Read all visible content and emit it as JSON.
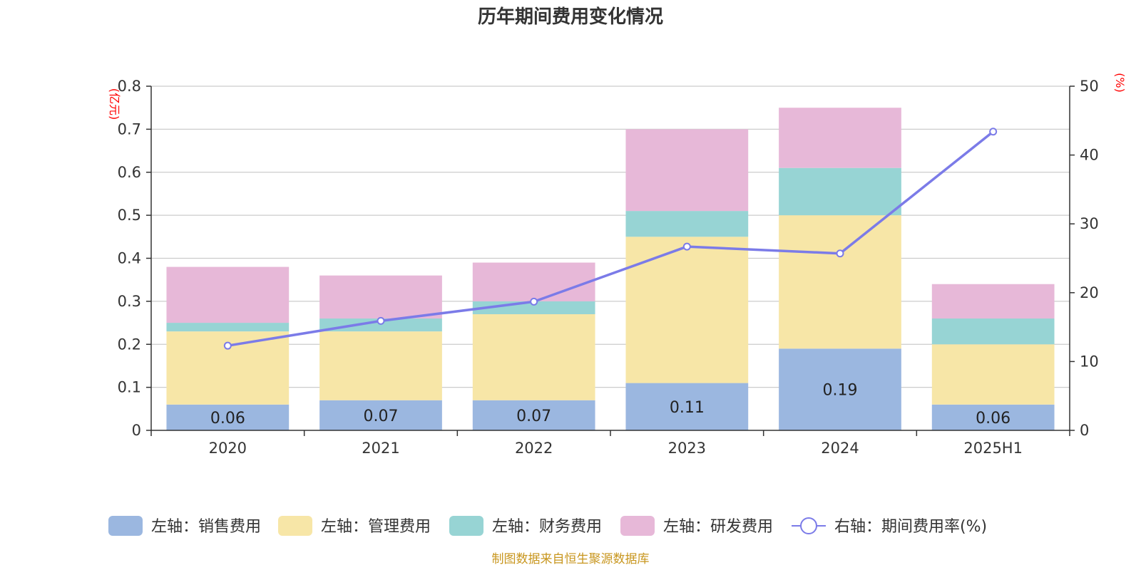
{
  "title": "历年期间费用变化情况",
  "source": "制图数据来自恒生聚源数据库",
  "chart_data": {
    "type": "bar",
    "stacked": true,
    "categories": [
      "2020",
      "2021",
      "2022",
      "2023",
      "2024",
      "2025H1"
    ],
    "left_axis": {
      "unit": "(亿元)",
      "ylim": [
        0,
        0.8
      ],
      "ticks": [
        "0",
        "0.1",
        "0.2",
        "0.3",
        "0.4",
        "0.5",
        "0.6",
        "0.7",
        "0.8"
      ]
    },
    "right_axis": {
      "unit": "(%)",
      "ylim": [
        0,
        50
      ],
      "ticks": [
        "0",
        "10",
        "20",
        "30",
        "40",
        "50"
      ]
    },
    "series": [
      {
        "name": "左轴：销售费用",
        "axis": "left",
        "kind": "bar",
        "color": "#9bb7e0",
        "values": [
          0.06,
          0.07,
          0.07,
          0.11,
          0.19,
          0.06
        ],
        "labels": [
          "0.06",
          "0.07",
          "0.07",
          "0.11",
          "0.19",
          "0.06"
        ]
      },
      {
        "name": "左轴：管理费用",
        "axis": "left",
        "kind": "bar",
        "color": "#f7e6a7",
        "values": [
          0.17,
          0.16,
          0.2,
          0.34,
          0.31,
          0.14
        ]
      },
      {
        "name": "左轴：财务费用",
        "axis": "left",
        "kind": "bar",
        "color": "#97d4d4",
        "values": [
          0.02,
          0.03,
          0.03,
          0.06,
          0.11,
          0.06
        ]
      },
      {
        "name": "左轴：研发费用",
        "axis": "left",
        "kind": "bar",
        "color": "#e7b8d8",
        "values": [
          0.13,
          0.1,
          0.09,
          0.19,
          0.14,
          0.08
        ]
      },
      {
        "name": "右轴：期间费用率(%)",
        "axis": "right",
        "kind": "line",
        "color": "#7b7be8",
        "values": [
          12.3,
          15.9,
          18.7,
          26.7,
          25.7,
          43.4
        ]
      }
    ],
    "grid": true,
    "legend": "bottom"
  }
}
